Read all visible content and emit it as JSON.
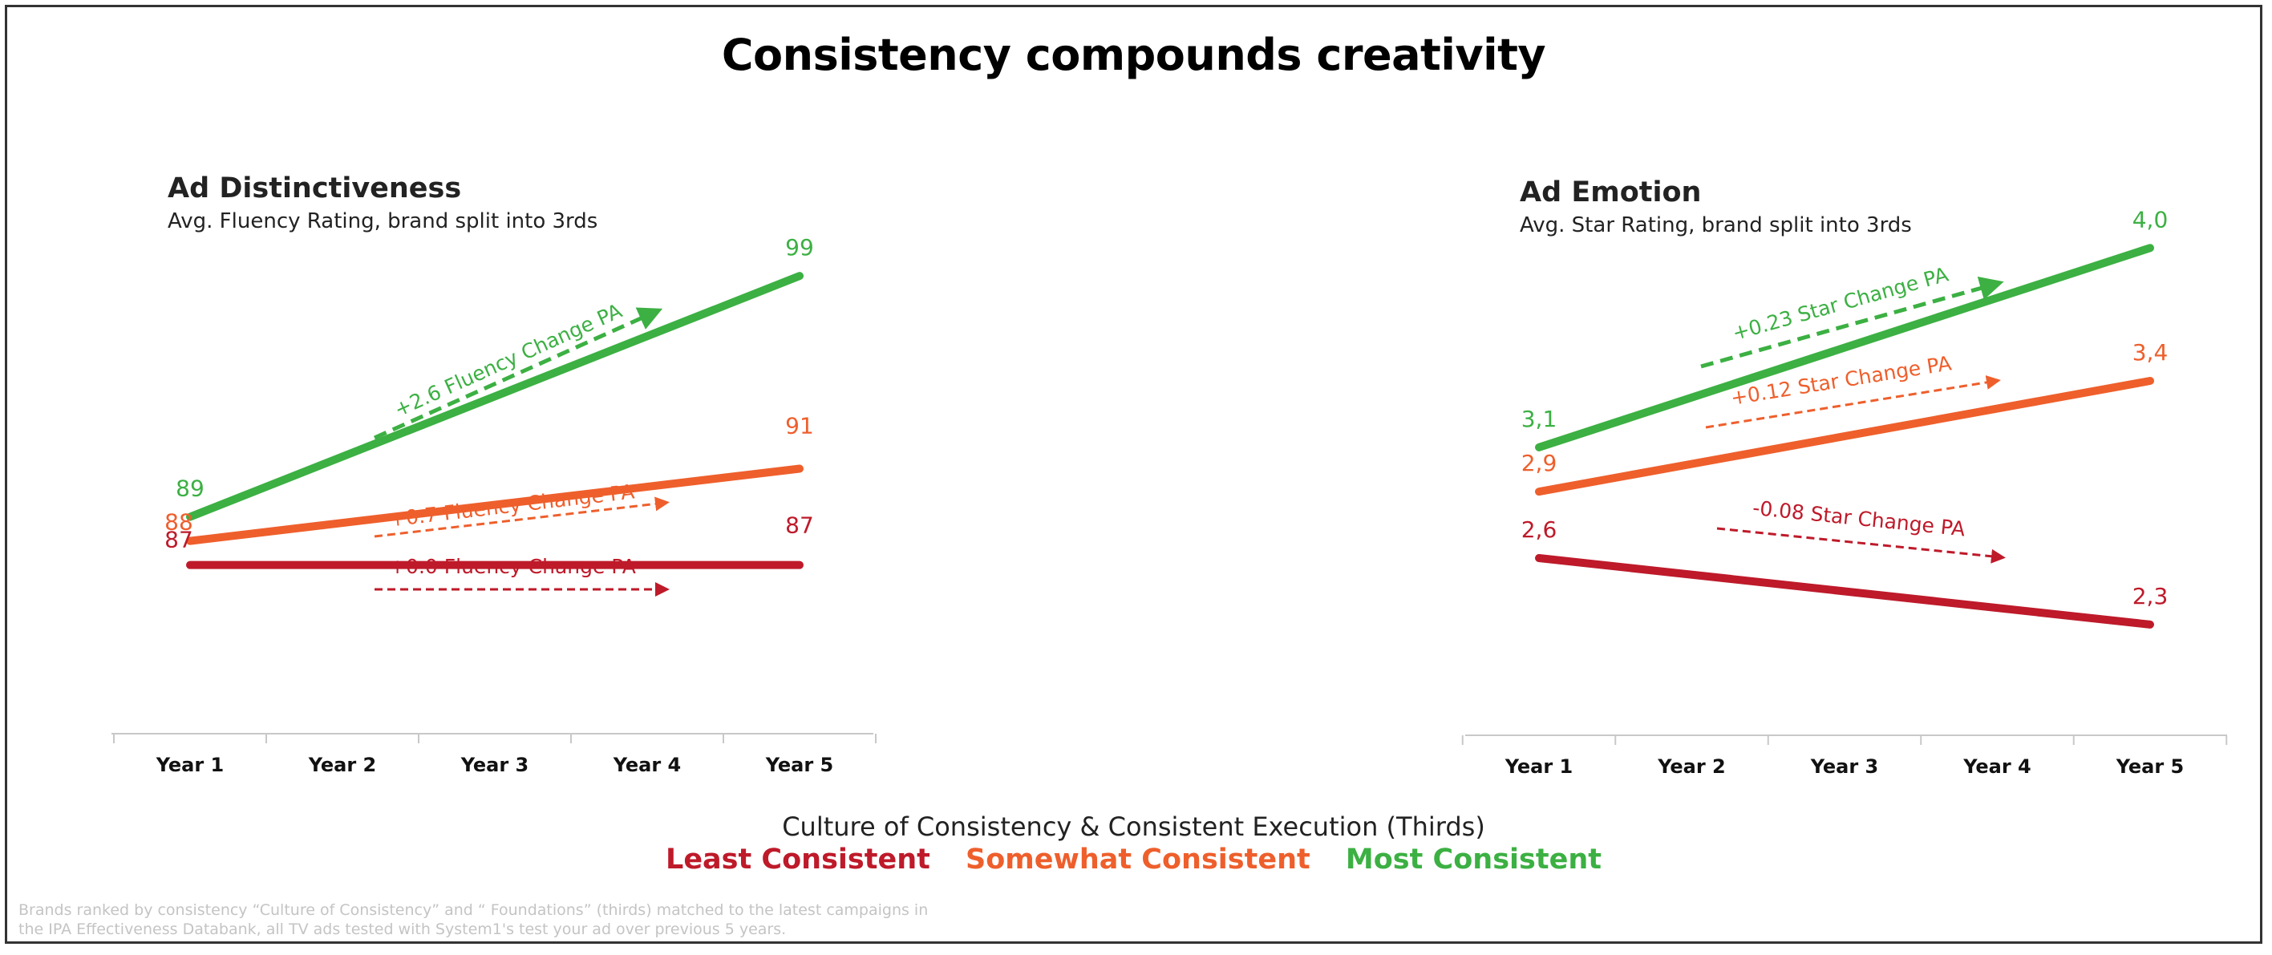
{
  "title": "Consistency compounds creativity",
  "colors": {
    "least": "#be1a2a",
    "somewhat": "#ee5f2c",
    "most": "#3cb043",
    "axis": "#c8c8c8"
  },
  "legend": {
    "title": "Culture of Consistency & Consistent Execution (Thirds)",
    "items": [
      {
        "label": "Least Consistent",
        "color": "#be1a2a"
      },
      {
        "label": "Somewhat Consistent",
        "color": "#ee5f2c"
      },
      {
        "label": "Most Consistent",
        "color": "#3cb043"
      }
    ]
  },
  "footnote": [
    "Brands ranked by consistency “Culture of Consistency” and “ Foundations” (thirds) matched to the latest campaigns in",
    "the IPA Effectiveness Databank, all TV ads tested with System1's test your ad over previous 5 years."
  ],
  "chart_data": [
    {
      "type": "line",
      "title": "Ad Distinctiveness",
      "subtitle": "Avg. Fluency Rating, brand split into 3rds",
      "categories": [
        "Year 1",
        "Year 2",
        "Year 3",
        "Year 4",
        "Year 5"
      ],
      "ylim": [
        80,
        102
      ],
      "grid": false,
      "series": [
        {
          "name": "Most Consistent",
          "color": "#3cb043",
          "x": [
            "Year 1",
            "Year 5"
          ],
          "values": [
            89,
            99
          ],
          "labels": [
            "89",
            "99"
          ],
          "annotation": "+2.6 Fluency Change PA"
        },
        {
          "name": "Somewhat Consistent",
          "color": "#ee5f2c",
          "x": [
            "Year 1",
            "Year 5"
          ],
          "values": [
            88,
            91
          ],
          "labels": [
            "88",
            "91"
          ],
          "annotation": "+0.7 Fluency Change PA"
        },
        {
          "name": "Least Consistent",
          "color": "#be1a2a",
          "x": [
            "Year 1",
            "Year 5"
          ],
          "values": [
            87,
            87
          ],
          "labels": [
            "87",
            "87"
          ],
          "annotation": "+0.0 Fluency Change PA"
        }
      ]
    },
    {
      "type": "line",
      "title": "Ad Emotion",
      "subtitle": "Avg. Star Rating, brand split into 3rds",
      "categories": [
        "Year 1",
        "Year 2",
        "Year 3",
        "Year 4",
        "Year 5"
      ],
      "ylim": [
        1.8,
        4.2
      ],
      "grid": false,
      "series": [
        {
          "name": "Most Consistent",
          "color": "#3cb043",
          "x": [
            "Year 1",
            "Year 5"
          ],
          "values": [
            3.1,
            4.0
          ],
          "labels": [
            "3,1",
            "4,0"
          ],
          "annotation": "+0.23 Star Change PA"
        },
        {
          "name": "Somewhat Consistent",
          "color": "#ee5f2c",
          "x": [
            "Year 1",
            "Year 5"
          ],
          "values": [
            2.9,
            3.4
          ],
          "labels": [
            "2,9",
            "3,4"
          ],
          "annotation": "+0.12 Star Change PA"
        },
        {
          "name": "Least Consistent",
          "color": "#be1a2a",
          "x": [
            "Year 1",
            "Year 5"
          ],
          "values": [
            2.6,
            2.3
          ],
          "labels": [
            "2,6",
            "2,3"
          ],
          "annotation": "-0.08 Star Change PA"
        }
      ]
    }
  ]
}
